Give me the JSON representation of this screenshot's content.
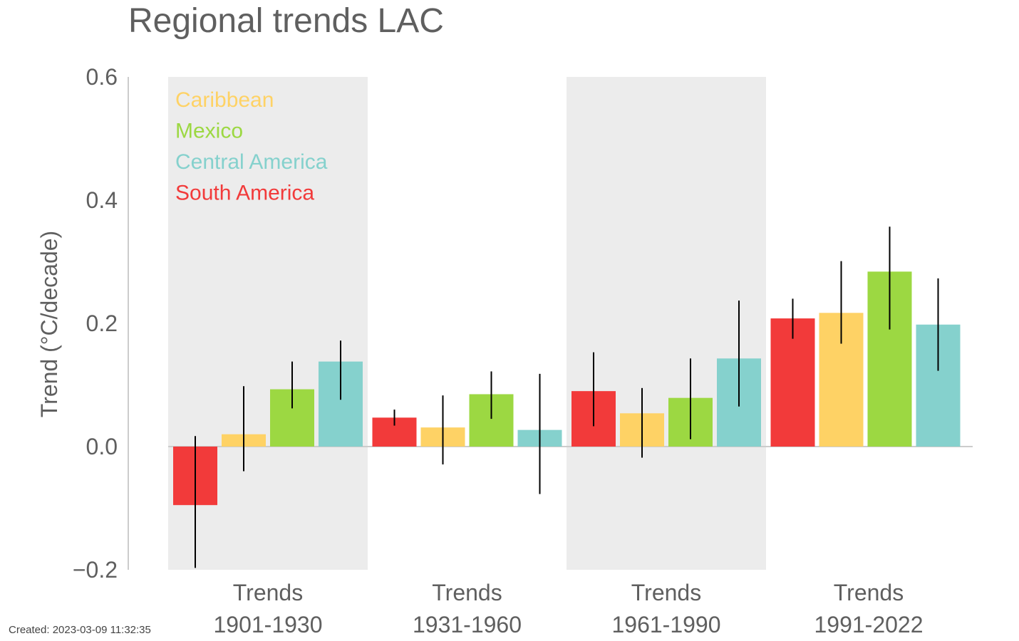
{
  "chart_data": {
    "type": "bar",
    "title": "Regional trends LAC",
    "ylabel": "Trend (°C/decade)",
    "xlabel": "",
    "ylim": [
      -0.2,
      0.6
    ],
    "yticks": [
      "−0.2",
      "0.0",
      "0.2",
      "0.4",
      "0.6"
    ],
    "ytick_values": [
      -0.2,
      0.0,
      0.2,
      0.4,
      0.6
    ],
    "categories": [
      {
        "line1": "Trends",
        "line2": "1901-1930",
        "shaded": true
      },
      {
        "line1": "Trends",
        "line2": "1931-1960",
        "shaded": false
      },
      {
        "line1": "Trends",
        "line2": "1961-1990",
        "shaded": true
      },
      {
        "line1": "Trends",
        "line2": "1991-2022",
        "shaded": false
      }
    ],
    "legend_placement": "top-left",
    "legend": [
      {
        "name": "Caribbean",
        "color": "#fed265"
      },
      {
        "name": "Mexico",
        "color": "#9cd842"
      },
      {
        "name": "Central America",
        "color": "#85d1cd"
      },
      {
        "name": "South America",
        "color": "#f23a3a"
      }
    ],
    "bar_order": [
      "South America",
      "Caribbean",
      "Mexico",
      "Central America"
    ],
    "series": [
      {
        "name": "South America",
        "color": "#f23a3a",
        "values": [
          -0.095,
          0.047,
          0.09,
          0.208
        ],
        "error_low": [
          -0.197,
          0.034,
          0.033,
          0.175
        ],
        "error_high": [
          0.017,
          0.06,
          0.153,
          0.24
        ]
      },
      {
        "name": "Caribbean",
        "color": "#fed265",
        "values": [
          0.02,
          0.031,
          0.054,
          0.217
        ],
        "error_low": [
          -0.04,
          -0.029,
          -0.018,
          0.167
        ],
        "error_high": [
          0.098,
          0.083,
          0.095,
          0.301
        ]
      },
      {
        "name": "Mexico",
        "color": "#9cd842",
        "values": [
          0.093,
          0.085,
          0.079,
          0.284
        ],
        "error_low": [
          0.062,
          0.045,
          0.012,
          0.19
        ],
        "error_high": [
          0.138,
          0.122,
          0.143,
          0.357
        ]
      },
      {
        "name": "Central America",
        "color": "#85d1cd",
        "values": [
          0.138,
          0.027,
          0.143,
          0.198
        ],
        "error_low": [
          0.076,
          -0.077,
          0.065,
          0.123
        ],
        "error_high": [
          0.172,
          0.118,
          0.237,
          0.273
        ]
      }
    ],
    "colors": {
      "shade": "#ececec",
      "axis": "#cccccc",
      "text": "#5f5f5f",
      "errorbar": "#000000"
    }
  },
  "footer": {
    "created": "Created: 2023-03-09 11:32:35"
  }
}
